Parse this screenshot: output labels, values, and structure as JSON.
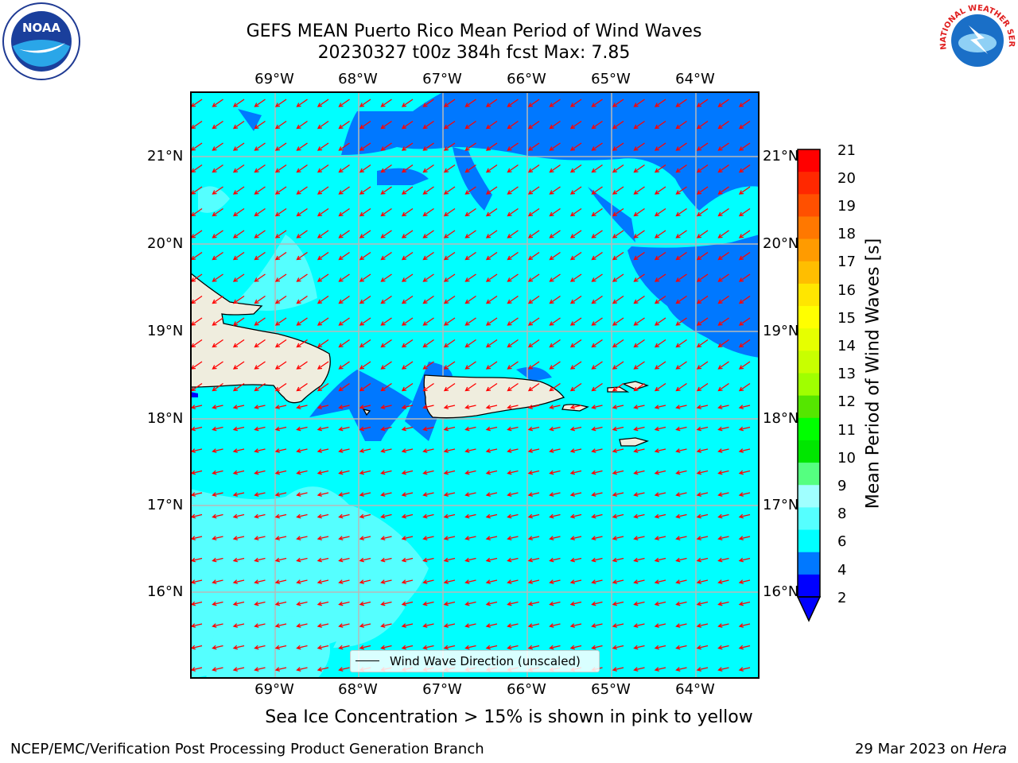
{
  "title": {
    "line1": "GEFS MEAN Puerto Rico Mean Period of Wind Waves",
    "line2": "20230327 t00z 384h fcst   Max: 7.85"
  },
  "map": {
    "lon_labels": [
      "69°W",
      "68°W",
      "67°W",
      "66°W",
      "65°W",
      "64°W"
    ],
    "lat_labels": [
      "21°N",
      "20°N",
      "19°N",
      "18°N",
      "17°N",
      "16°N"
    ],
    "land_color": "#efedde",
    "ocean_color": "#00ffff",
    "arrow_color": "#ff0000",
    "grid_color": "#b8b8b8",
    "arrows_direction": "toward west-southwest",
    "legend_label": "Wind Wave Direction (unscaled)"
  },
  "colorbar": {
    "label": "Mean Period of Wind Waves [s]",
    "ticks": [
      "21",
      "20",
      "19",
      "18",
      "17",
      "16",
      "15",
      "14",
      "13",
      "12",
      "11",
      "10",
      "9",
      "8",
      "6",
      "4",
      "2"
    ],
    "colors_top_to_bottom": [
      "#ff0000",
      "#ff2800",
      "#ff5000",
      "#ff7800",
      "#ff9b00",
      "#ffbe00",
      "#ffe600",
      "#ffff00",
      "#e6ff00",
      "#c8ff00",
      "#a0ff00",
      "#55e600",
      "#00ff00",
      "#00e600",
      "#55ff80",
      "#a0ffff",
      "#55ffff",
      "#00ffff",
      "#0078ff",
      "#0000ff"
    ]
  },
  "logos": {
    "noaa_text": "NOAA",
    "nws_text": "NATIONAL WEATHER SERVICE"
  },
  "note": "Sea Ice Concentration > 15% is shown in pink to yellow",
  "footer": {
    "left": "NCEP/EMC/Verification Post Processing Product Generation Branch",
    "right_date": "29 Mar 2023 on ",
    "right_machine": "Hera"
  }
}
